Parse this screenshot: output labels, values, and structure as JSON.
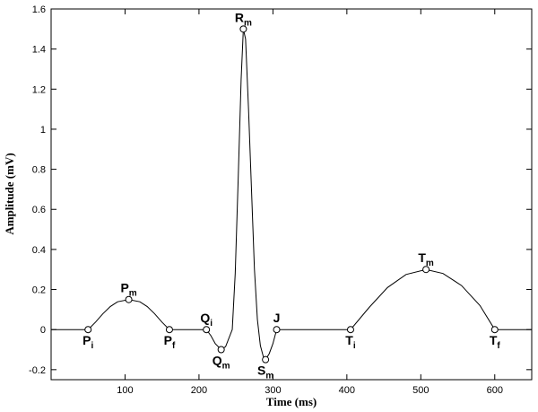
{
  "chart_data": {
    "type": "line",
    "title": "",
    "xlabel": "Time (ms)",
    "ylabel": "Amplitude (mV)",
    "xlim": [
      0,
      650
    ],
    "ylim": [
      -0.25,
      1.6
    ],
    "x_ticks": [
      100,
      200,
      300,
      400,
      500,
      600
    ],
    "y_ticks": [
      -0.2,
      0,
      0.2,
      0.4,
      0.6,
      0.8,
      1,
      1.2,
      1.4,
      1.6
    ],
    "x_tick_labels": [
      "100",
      "200",
      "300",
      "400",
      "500",
      "600"
    ],
    "y_tick_labels": [
      "-0.2",
      "0",
      "0.2",
      "0.4",
      "0.6",
      "0.8",
      "1",
      "1.2",
      "1.4",
      "1.6"
    ],
    "grid": false,
    "legend": false,
    "series": [
      {
        "x": [
          0,
          50,
          60,
          70,
          80,
          90,
          105,
          120,
          130,
          140,
          150,
          160,
          175,
          190,
          205,
          210,
          216,
          222,
          230,
          236,
          245,
          249,
          253,
          257,
          260,
          263,
          267,
          271,
          275,
          279,
          283,
          287,
          290,
          295,
          300,
          305,
          320,
          350,
          380,
          405,
          430,
          455,
          480,
          507,
          530,
          555,
          580,
          600,
          610,
          630,
          650
        ],
        "y": [
          0,
          0,
          0.037,
          0.079,
          0.115,
          0.139,
          0.15,
          0.139,
          0.115,
          0.079,
          0.037,
          0,
          0,
          0,
          0,
          0,
          -0.03,
          -0.07,
          -0.1,
          -0.085,
          0,
          0.28,
          0.75,
          1.25,
          1.5,
          1.45,
          1.1,
          0.7,
          0.3,
          0.05,
          -0.08,
          -0.135,
          -0.15,
          -0.12,
          -0.07,
          0,
          0,
          0,
          0,
          0,
          0.11,
          0.21,
          0.275,
          0.3,
          0.28,
          0.22,
          0.12,
          0,
          0,
          0,
          0
        ]
      }
    ],
    "markers": [
      {
        "name": "P",
        "sub": "i",
        "x": 50,
        "y": 0,
        "label_pos": "below"
      },
      {
        "name": "P",
        "sub": "m",
        "x": 105,
        "y": 0.15,
        "label_pos": "above"
      },
      {
        "name": "P",
        "sub": "f",
        "x": 160,
        "y": 0,
        "label_pos": "below"
      },
      {
        "name": "Q",
        "sub": "i",
        "x": 210,
        "y": 0,
        "label_pos": "above"
      },
      {
        "name": "Q",
        "sub": "m",
        "x": 230,
        "y": -0.1,
        "label_pos": "below"
      },
      {
        "name": "R",
        "sub": "m",
        "x": 260,
        "y": 1.5,
        "label_pos": "above"
      },
      {
        "name": "S",
        "sub": "m",
        "x": 290,
        "y": -0.15,
        "label_pos": "below"
      },
      {
        "name": "J",
        "sub": "",
        "x": 305,
        "y": 0,
        "label_pos": "above"
      },
      {
        "name": "T",
        "sub": "i",
        "x": 405,
        "y": 0,
        "label_pos": "below"
      },
      {
        "name": "T",
        "sub": "m",
        "x": 507,
        "y": 0.3,
        "label_pos": "above"
      },
      {
        "name": "T",
        "sub": "f",
        "x": 600,
        "y": 0,
        "label_pos": "below"
      }
    ]
  }
}
